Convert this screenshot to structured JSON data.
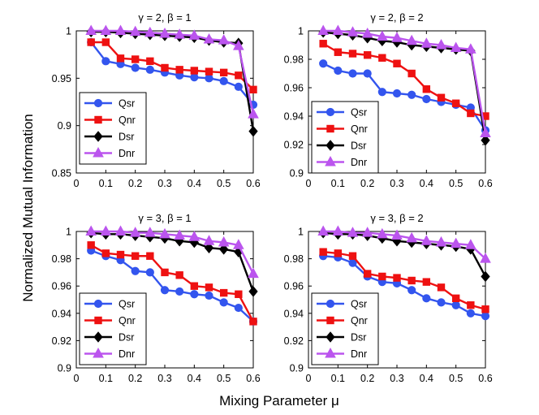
{
  "figure": {
    "ylabel": "Normalized Mutual Information",
    "xlabel": "Mixing Parameter μ"
  },
  "chart_data": [
    {
      "type": "line",
      "title": "γ = 2, β = 1",
      "x": [
        0.05,
        0.1,
        0.15,
        0.2,
        0.25,
        0.3,
        0.35,
        0.4,
        0.45,
        0.5,
        0.55,
        0.6
      ],
      "xlim": [
        0,
        0.6
      ],
      "ylim": [
        0.85,
        1.0
      ],
      "xticks": [
        "0",
        "0.1",
        "0.2",
        "0.3",
        "0.4",
        "0.5",
        "0.6"
      ],
      "xtick_values": [
        0,
        0.1,
        0.2,
        0.3,
        0.4,
        0.5,
        0.6
      ],
      "yticks": [
        "0.85",
        "0.9",
        "0.95",
        "1"
      ],
      "ytick_values": [
        0.85,
        0.9,
        0.95,
        1.0
      ],
      "series": [
        {
          "name": "Qsr",
          "color": "#3355ee",
          "marker": "circle",
          "values": [
            0.988,
            0.968,
            0.965,
            0.961,
            0.959,
            0.956,
            0.953,
            0.951,
            0.95,
            0.947,
            0.941,
            0.922
          ]
        },
        {
          "name": "Qnr",
          "color": "#ee1111",
          "marker": "square",
          "values": [
            0.988,
            0.988,
            0.971,
            0.97,
            0.968,
            0.961,
            0.959,
            0.958,
            0.957,
            0.956,
            0.953,
            0.938
          ]
        },
        {
          "name": "Dsr",
          "color": "#000000",
          "marker": "diamond",
          "values": [
            0.999,
            0.999,
            0.998,
            0.997,
            0.996,
            0.995,
            0.994,
            0.993,
            0.99,
            0.988,
            0.987,
            0.894
          ]
        },
        {
          "name": "Dnr",
          "color": "#bb55ee",
          "marker": "triangle",
          "values": [
            1.0,
            1.0,
            1.0,
            0.999,
            0.998,
            0.997,
            0.996,
            0.995,
            0.991,
            0.99,
            0.984,
            0.912
          ]
        }
      ]
    },
    {
      "type": "line",
      "title": "γ = 2, β = 2",
      "x": [
        0.05,
        0.1,
        0.15,
        0.2,
        0.25,
        0.3,
        0.35,
        0.4,
        0.45,
        0.5,
        0.55,
        0.6
      ],
      "xlim": [
        0,
        0.6
      ],
      "ylim": [
        0.9,
        1.0
      ],
      "xticks": [
        "0",
        "0.1",
        "0.2",
        "0.3",
        "0.4",
        "0.5",
        "0.6"
      ],
      "xtick_values": [
        0,
        0.1,
        0.2,
        0.3,
        0.4,
        0.5,
        0.6
      ],
      "yticks": [
        "0.9",
        "0.92",
        "0.94",
        "0.96",
        "0.98",
        "1"
      ],
      "ytick_values": [
        0.9,
        0.92,
        0.94,
        0.96,
        0.98,
        1.0
      ],
      "series": [
        {
          "name": "Qsr",
          "color": "#3355ee",
          "marker": "circle",
          "values": [
            0.977,
            0.972,
            0.97,
            0.97,
            0.957,
            0.956,
            0.955,
            0.952,
            0.95,
            0.948,
            0.946,
            0.93
          ]
        },
        {
          "name": "Qnr",
          "color": "#ee1111",
          "marker": "square",
          "values": [
            0.991,
            0.985,
            0.984,
            0.983,
            0.981,
            0.977,
            0.97,
            0.959,
            0.953,
            0.949,
            0.942,
            0.94
          ]
        },
        {
          "name": "Dsr",
          "color": "#000000",
          "marker": "diamond",
          "values": [
            0.999,
            0.998,
            0.997,
            0.995,
            0.993,
            0.992,
            0.99,
            0.989,
            0.988,
            0.987,
            0.986,
            0.923
          ]
        },
        {
          "name": "Dnr",
          "color": "#bb55ee",
          "marker": "triangle",
          "values": [
            1.0,
            1.0,
            0.999,
            0.998,
            0.996,
            0.995,
            0.993,
            0.991,
            0.99,
            0.988,
            0.987,
            0.928
          ]
        }
      ]
    },
    {
      "type": "line",
      "title": "γ = 3, β = 1",
      "x": [
        0.05,
        0.1,
        0.15,
        0.2,
        0.25,
        0.3,
        0.35,
        0.4,
        0.45,
        0.5,
        0.55,
        0.6
      ],
      "xlim": [
        0,
        0.6
      ],
      "ylim": [
        0.9,
        1.0
      ],
      "xticks": [
        "0",
        "0.1",
        "0.2",
        "0.3",
        "0.4",
        "0.5",
        "0.6"
      ],
      "xtick_values": [
        0,
        0.1,
        0.2,
        0.3,
        0.4,
        0.5,
        0.6
      ],
      "yticks": [
        "0.9",
        "0.92",
        "0.94",
        "0.96",
        "0.98",
        "1"
      ],
      "ytick_values": [
        0.9,
        0.92,
        0.94,
        0.96,
        0.98,
        1.0
      ],
      "series": [
        {
          "name": "Qsr",
          "color": "#3355ee",
          "marker": "circle",
          "values": [
            0.986,
            0.982,
            0.979,
            0.971,
            0.97,
            0.957,
            0.956,
            0.954,
            0.953,
            0.948,
            0.944,
            0.934
          ]
        },
        {
          "name": "Qnr",
          "color": "#ee1111",
          "marker": "square",
          "values": [
            0.99,
            0.984,
            0.983,
            0.982,
            0.982,
            0.97,
            0.968,
            0.96,
            0.959,
            0.955,
            0.954,
            0.934
          ]
        },
        {
          "name": "Dsr",
          "color": "#000000",
          "marker": "diamond",
          "values": [
            0.999,
            0.998,
            0.998,
            0.997,
            0.996,
            0.995,
            0.993,
            0.992,
            0.988,
            0.987,
            0.985,
            0.956
          ]
        },
        {
          "name": "Dnr",
          "color": "#bb55ee",
          "marker": "triangle",
          "values": [
            1.0,
            1.0,
            1.0,
            0.999,
            0.999,
            0.998,
            0.997,
            0.996,
            0.993,
            0.992,
            0.99,
            0.969
          ]
        }
      ]
    },
    {
      "type": "line",
      "title": "γ = 3, β = 2",
      "x": [
        0.05,
        0.1,
        0.15,
        0.2,
        0.25,
        0.3,
        0.35,
        0.4,
        0.45,
        0.5,
        0.55,
        0.6
      ],
      "xlim": [
        0,
        0.6
      ],
      "ylim": [
        0.9,
        1.0
      ],
      "xticks": [
        "0",
        "0.1",
        "0.2",
        "0.3",
        "0.4",
        "0.5",
        "0.6"
      ],
      "xtick_values": [
        0,
        0.1,
        0.2,
        0.3,
        0.4,
        0.5,
        0.6
      ],
      "yticks": [
        "0.9",
        "0.92",
        "0.94",
        "0.96",
        "0.98",
        "1"
      ],
      "ytick_values": [
        0.9,
        0.92,
        0.94,
        0.96,
        0.98,
        1.0
      ],
      "series": [
        {
          "name": "Qsr",
          "color": "#3355ee",
          "marker": "circle",
          "values": [
            0.982,
            0.981,
            0.977,
            0.967,
            0.963,
            0.962,
            0.957,
            0.951,
            0.948,
            0.946,
            0.94,
            0.938
          ]
        },
        {
          "name": "Qnr",
          "color": "#ee1111",
          "marker": "square",
          "values": [
            0.985,
            0.984,
            0.982,
            0.969,
            0.967,
            0.966,
            0.964,
            0.963,
            0.959,
            0.951,
            0.946,
            0.943
          ]
        },
        {
          "name": "Dsr",
          "color": "#000000",
          "marker": "diamond",
          "values": [
            0.999,
            0.998,
            0.998,
            0.997,
            0.995,
            0.993,
            0.992,
            0.991,
            0.99,
            0.989,
            0.987,
            0.967
          ]
        },
        {
          "name": "Dnr",
          "color": "#bb55ee",
          "marker": "triangle",
          "values": [
            1.0,
            1.0,
            0.999,
            0.999,
            0.998,
            0.997,
            0.995,
            0.993,
            0.992,
            0.991,
            0.99,
            0.98
          ]
        }
      ]
    }
  ]
}
